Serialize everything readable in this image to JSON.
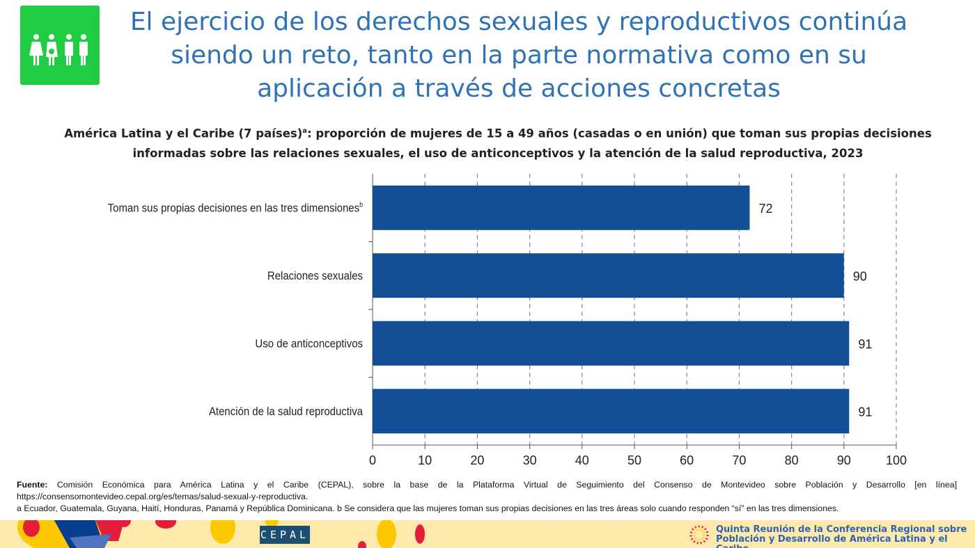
{
  "header": {
    "title": "El ejercicio de los derechos sexuales y reproductivos continúa siendo un reto, tanto en la parte normativa como en su aplicación a través de acciones concretas",
    "logo_icon": "family-people-icon",
    "logo_color": "#1fcc44"
  },
  "chart_data": {
    "type": "bar",
    "orientation": "horizontal",
    "title_part1": "América Latina y el Caribe (7 países)",
    "title_sup": "a",
    "title_part2": ": proporción de mujeres de 15 a 49 años (casadas o en unión) que toman sus propias decisiones informadas sobre las relaciones sexuales, el uso de anticonceptivos y la atención de la salud reproductiva, 2023",
    "categories": [
      "Toman sus propias decisiones en las tres dimensiones",
      "Relaciones sexuales",
      "Uso de anticonceptivos",
      "Atención de la salud reproductiva"
    ],
    "category_sups": [
      "b",
      "",
      "",
      ""
    ],
    "values": [
      72,
      90,
      91,
      91
    ],
    "data_labels": [
      "72",
      "90",
      "91",
      "91"
    ],
    "xlim": [
      0,
      100
    ],
    "xticks": [
      "0",
      "10",
      "20",
      "30",
      "40",
      "50",
      "60",
      "70",
      "80",
      "90",
      "100"
    ],
    "grid": "vertical dashed",
    "bar_color": "#124e96"
  },
  "notes": {
    "source_label": "Fuente:",
    "source_text": " Comisión Económica para América Latina y el Caribe (CEPAL), sobre la base de la Plataforma Virtual de Seguimiento del Consenso de Montevideo sobre Población y Desarrollo [en línea]",
    "source_url": "https://consensomontevideo.cepal.org/es/temas/salud-sexual-y-reproductiva.",
    "footnotes": "a Ecuador, Guatemala, Guyana, Haití, Honduras, Panamá y República Dominicana. b Se considera que las mujeres toman sus propias decisiones en las tres áreas solo cuando responden “sí” en las tres dimensiones."
  },
  "footer": {
    "cepal_logo": "CEPAL",
    "conference_line1": "Quinta Reunión de la Conferencia Regional sobre",
    "conference_line2": "Población y Desarrollo de América Latina y el Caribe"
  }
}
